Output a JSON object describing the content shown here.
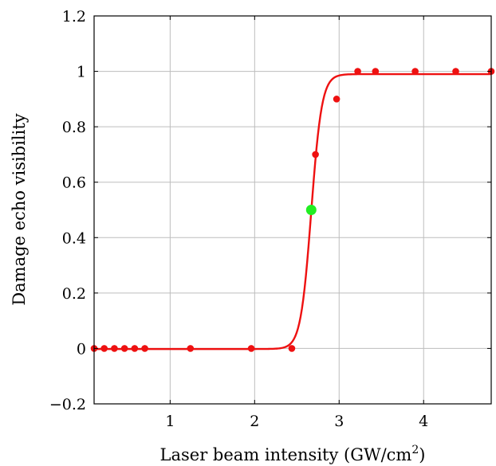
{
  "chart_data": {
    "type": "scatter",
    "title": "",
    "xlabel": "Laser beam intensity (GW/cm",
    "xlabel_sup": "2",
    "xlabel_suffix": ")",
    "ylabel": "Damage echo visibility",
    "xlim": [
      0.1,
      4.8
    ],
    "ylim": [
      -0.2,
      1.2
    ],
    "x_ticks": [
      1,
      2,
      3,
      4
    ],
    "x_tick_labels": [
      "1",
      "2",
      "3",
      "4"
    ],
    "y_ticks": [
      -0.2,
      0,
      0.2,
      0.4,
      0.6,
      0.8,
      1,
      1.2
    ],
    "y_tick_labels": [
      "−0.2",
      "0",
      "0.2",
      "0.4",
      "0.6",
      "0.8",
      "1",
      "1.2"
    ],
    "grid": true,
    "series": [
      {
        "kind": "points",
        "color": "#ee1111",
        "x": [
          0.1,
          0.22,
          0.34,
          0.46,
          0.58,
          0.7,
          1.24,
          1.96,
          2.44,
          2.72,
          2.97,
          3.22,
          3.43,
          3.9,
          4.38,
          4.8
        ],
        "y": [
          0,
          0,
          0,
          0,
          0,
          0,
          0,
          0,
          0,
          0.7,
          0.9,
          1,
          1,
          1,
          1,
          1
        ]
      },
      {
        "kind": "fit-curve",
        "color": "#ee1111",
        "model": "logistic",
        "lower": -0.002,
        "upper": 0.99,
        "midpoint": 2.67,
        "steepness": 16
      },
      {
        "kind": "highlight-point",
        "color": "#22ee22",
        "x": [
          2.67
        ],
        "y": [
          0.5
        ]
      }
    ]
  }
}
